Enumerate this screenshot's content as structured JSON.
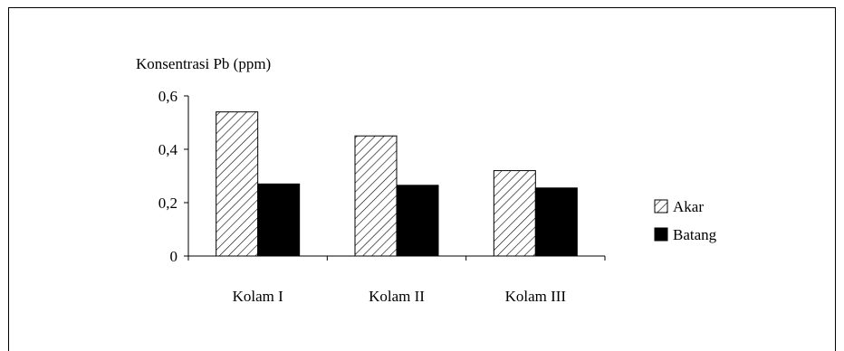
{
  "chart_data": {
    "type": "bar",
    "title": "",
    "ylabel": "Konsentrasi Pb (ppm)",
    "xlabel": "",
    "categories": [
      "Kolam I",
      "Kolam II",
      "Kolam III"
    ],
    "series": [
      {
        "name": "Akar",
        "values": [
          0.54,
          0.45,
          0.32
        ],
        "fill": "hatch"
      },
      {
        "name": "Batang",
        "values": [
          0.27,
          0.265,
          0.255
        ],
        "fill": "#000000"
      }
    ],
    "ylim": [
      0,
      0.6
    ],
    "yticks": [
      {
        "value": 0,
        "label": "0"
      },
      {
        "value": 0.2,
        "label": "0,2"
      },
      {
        "value": 0.4,
        "label": "0,4"
      },
      {
        "value": 0.6,
        "label": "0,6"
      }
    ],
    "grid": false,
    "legend_position": "right"
  }
}
